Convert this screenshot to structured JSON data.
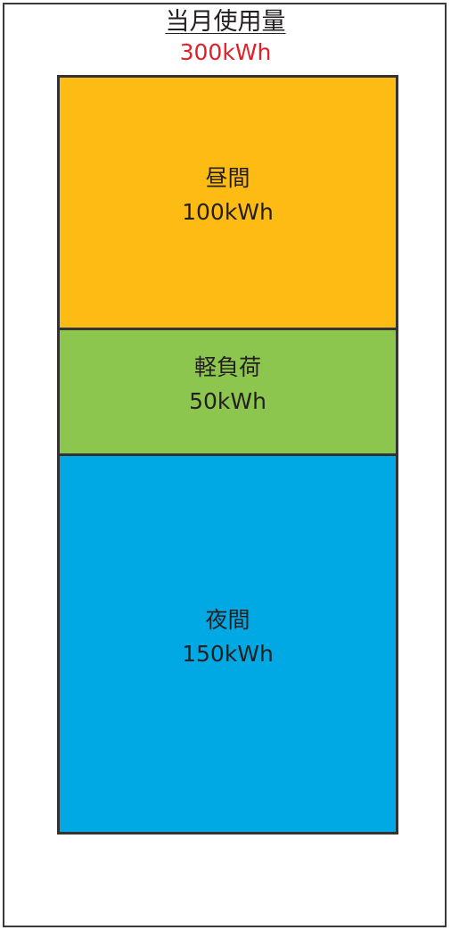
{
  "chart_data": {
    "type": "bar",
    "title": "当月使用量",
    "total": "300kWh",
    "stacked": true,
    "unit": "kWh",
    "segments": [
      {
        "name": "昼間",
        "value": 100,
        "label": "100kWh",
        "color": "#fdbb13"
      },
      {
        "name": "軽負荷",
        "value": 50,
        "label": "50kWh",
        "color": "#8dc64e"
      },
      {
        "name": "夜間",
        "value": 150,
        "label": "150kWh",
        "color": "#00a9e3"
      }
    ]
  }
}
